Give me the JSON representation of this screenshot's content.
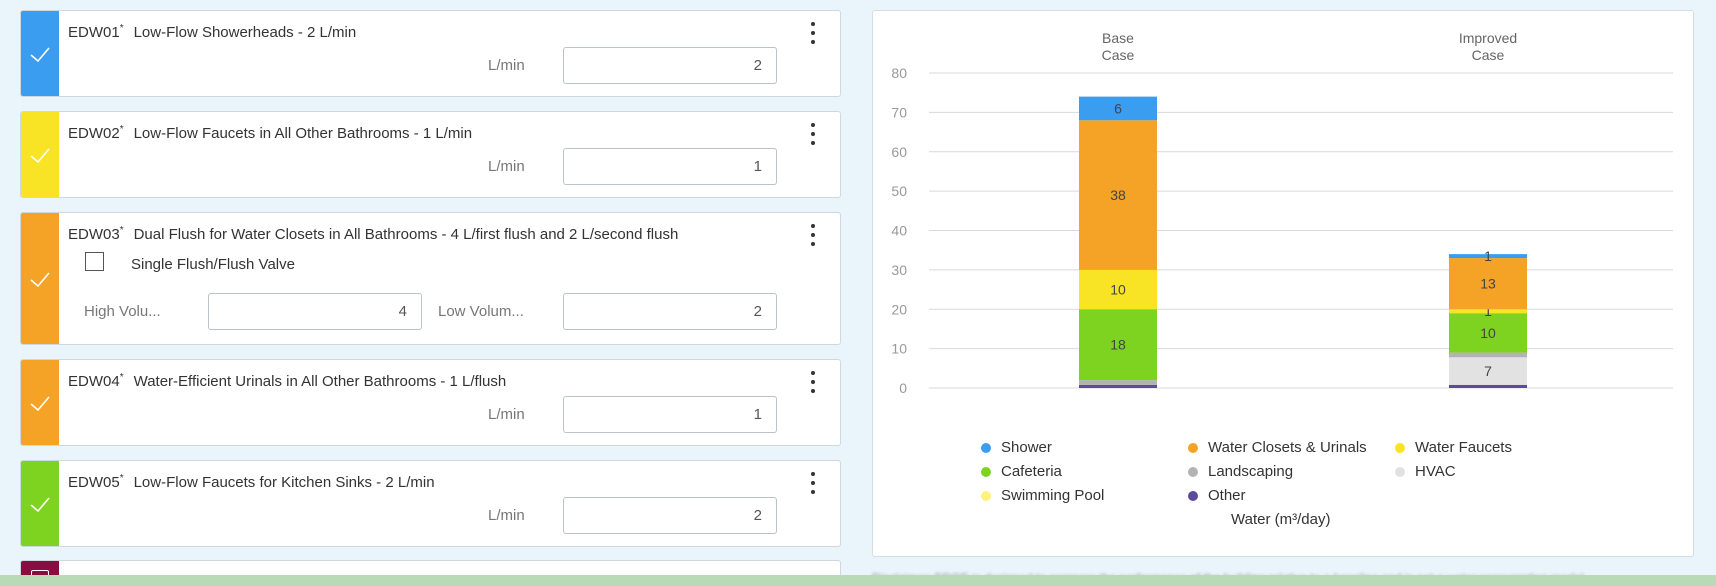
{
  "measures": [
    {
      "code": "EDW01",
      "marker": "*",
      "title": "Low-Flow Showerheads - 2 L/min",
      "color": "#3a9df0",
      "fields": [
        {
          "label": "L/min",
          "value": "2"
        }
      ]
    },
    {
      "code": "EDW02",
      "marker": "*",
      "title": "Low-Flow Faucets in All Other Bathrooms - 1 L/min",
      "color": "#f8e424",
      "fields": [
        {
          "label": "L/min",
          "value": "1"
        }
      ]
    },
    {
      "code": "EDW03",
      "marker": "*",
      "title": "Dual Flush for Water Closets in All Bathrooms - 4 L/first flush and 2 L/second flush",
      "color": "#f4a326",
      "checkbox": {
        "label": "Single Flush/Flush Valve",
        "checked": false
      },
      "fields": [
        {
          "label": "High Volu...",
          "value": "4"
        },
        {
          "label": "Low Volum...",
          "value": "2"
        }
      ]
    },
    {
      "code": "EDW04",
      "marker": "*",
      "title": "Water-Efficient Urinals in All Other Bathrooms - 1 L/flush",
      "color": "#f4a326",
      "fields": [
        {
          "label": "L/min",
          "value": "1"
        }
      ]
    },
    {
      "code": "EDW05",
      "marker": "*",
      "title": "Low-Flow Faucets for Kitchen Sinks - 2 L/min",
      "color": "#7ed321",
      "fields": [
        {
          "label": "L/min",
          "value": "2"
        }
      ]
    }
  ],
  "peek_card": {
    "color": "#8a0d42"
  },
  "chart_data": {
    "type": "bar",
    "stacked": true,
    "categories": [
      "Base\nCase",
      "Improved\nCase"
    ],
    "ylim": [
      0,
      80
    ],
    "yticks": [
      0,
      10,
      20,
      30,
      40,
      50,
      60,
      70,
      80
    ],
    "xlabel": "Water (m³/day)",
    "grid": true,
    "legend_position": "bottom",
    "series": [
      {
        "name": "Other",
        "color": "#5b4b9a",
        "values": [
          0.8,
          0.8
        ],
        "labels": [
          "",
          ""
        ]
      },
      {
        "name": "HVAC",
        "color": "#e2e2e2",
        "values": [
          0,
          7
        ],
        "labels": [
          "",
          "7"
        ]
      },
      {
        "name": "Landscaping",
        "color": "#b3b3b3",
        "values": [
          1.2,
          1.2
        ],
        "labels": [
          "",
          ""
        ]
      },
      {
        "name": "Cafeteria",
        "color": "#7ed321",
        "values": [
          18,
          10
        ],
        "labels": [
          "18",
          "10"
        ]
      },
      {
        "name": "Water Faucets",
        "color": "#f8e424",
        "values": [
          10,
          1
        ],
        "labels": [
          "10",
          "1"
        ]
      },
      {
        "name": "Water Closets & Urinals",
        "color": "#f4a326",
        "values": [
          38,
          13
        ],
        "labels": [
          "38",
          "13"
        ]
      },
      {
        "name": "Shower",
        "color": "#3a9df0",
        "values": [
          6,
          1
        ],
        "labels": [
          "6",
          "1"
        ]
      },
      {
        "name": "Swimming Pool",
        "color": "#fff27a",
        "values": [
          0,
          0
        ],
        "labels": [
          "",
          ""
        ]
      }
    ],
    "legend": [
      [
        "Shower",
        "Water Closets & Urinals",
        "Water Faucets"
      ],
      [
        "Cafeteria",
        "Landscaping",
        "HVAC"
      ],
      [
        "Swimming Pool",
        "Other"
      ]
    ]
  },
  "footnote": "Disclaimer: EDGE is designed to compare the performance of the building relative to a baseline and is not a water consumption model"
}
